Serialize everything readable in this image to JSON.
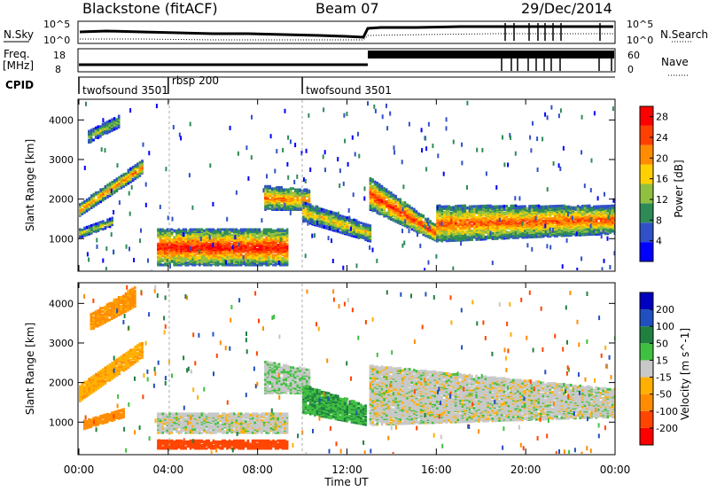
{
  "header": {
    "station": "Blackstone (fitACF)",
    "beam": "Beam 07",
    "date": "29/Dec/2014"
  },
  "status_panels": {
    "nsky_label": "N.Sky",
    "nsky_ticks": [
      "10^5",
      "10^0"
    ],
    "nsearch_label": "N.Search",
    "nsearch_ticks": [
      "10^5",
      "10^0"
    ],
    "freq_label_1": "Freq.",
    "freq_label_2": "[MHz]",
    "freq_ticks": [
      "18",
      "8"
    ],
    "nave_label": "Nave",
    "nave_ticks": [
      "60",
      "0"
    ],
    "cpid_label": "CPID",
    "cpid_segments": [
      {
        "name": "twofsound 3501",
        "start_hour": 0.0,
        "end_hour": 4.0
      },
      {
        "name": "rbsp 200",
        "start_hour": 4.0,
        "end_hour": 10.0
      },
      {
        "name": "twofsound 3501",
        "start_hour": 10.0,
        "end_hour": 24.0
      }
    ]
  },
  "chart_data": [
    {
      "type": "heatmap",
      "title": "",
      "xlabel": "",
      "ylabel": "Slant Range [km]",
      "xlim": [
        0,
        24
      ],
      "ylim": [
        200,
        4500
      ],
      "yticks": [
        1000,
        2000,
        3000,
        4000
      ],
      "colorbar": {
        "label": "Power [dB]",
        "ticks": [
          4,
          8,
          12,
          16,
          20,
          24,
          28
        ],
        "range": [
          0,
          30
        ],
        "colors": [
          "#0000ff",
          "#3050c8",
          "#2e8b57",
          "#90c040",
          "#ffd000",
          "#ff8c00",
          "#ff4000",
          "#ff0000"
        ]
      },
      "echo_bands": [
        {
          "start_hour": 0.0,
          "end_hour": 2.8,
          "range_start": [
            1550,
            1850
          ],
          "range_end": [
            2600,
            2950
          ],
          "peak_db": 22
        },
        {
          "start_hour": 0.0,
          "end_hour": 1.5,
          "range_start": [
            1000,
            1200
          ],
          "range_end": [
            1300,
            1500
          ],
          "peak_db": 16
        },
        {
          "start_hour": 0.4,
          "end_hour": 1.8,
          "range_start": [
            3400,
            3700
          ],
          "range_end": [
            3800,
            4100
          ],
          "peak_db": 14
        },
        {
          "start_hour": 3.5,
          "end_hour": 9.3,
          "range_start": [
            300,
            1200
          ],
          "range_end": [
            300,
            1200
          ],
          "peak_db": 28
        },
        {
          "start_hour": 8.3,
          "end_hour": 10.3,
          "range_start": [
            1700,
            2300
          ],
          "range_end": [
            1700,
            2200
          ],
          "peak_db": 22
        },
        {
          "start_hour": 10.0,
          "end_hour": 13.0,
          "range_start": [
            1400,
            1900
          ],
          "range_end": [
            900,
            1300
          ],
          "peak_db": 18
        },
        {
          "start_hour": 13.0,
          "end_hour": 16.0,
          "range_start": [
            1700,
            2500
          ],
          "range_end": [
            900,
            1300
          ],
          "peak_db": 26
        },
        {
          "start_hour": 16.0,
          "end_hour": 24.0,
          "range_start": [
            900,
            1800
          ],
          "range_end": [
            1100,
            1800
          ],
          "peak_db": 24
        }
      ]
    },
    {
      "type": "heatmap",
      "title": "",
      "xlabel": "Time UT",
      "ylabel": "Slant Range [km]",
      "xlim": [
        0,
        24
      ],
      "ylim": [
        200,
        4500
      ],
      "xticks": [
        "00:00",
        "04:00",
        "08:00",
        "12:00",
        "16:00",
        "20:00",
        "00:00"
      ],
      "yticks": [
        1000,
        2000,
        3000,
        4000
      ],
      "colorbar": {
        "label": "Velocity [m s^-1]",
        "ticks": [
          -200,
          -100,
          -50,
          -15,
          15,
          50,
          100,
          200
        ],
        "colors": [
          "#ff0000",
          "#ff4500",
          "#ff8c00",
          "#ffb000",
          "#c8c8c8",
          "#40c040",
          "#208040",
          "#2050c0",
          "#0000c0"
        ]
      },
      "echo_bands": [
        {
          "start_hour": 0.0,
          "end_hour": 2.8,
          "range_start": [
            1500,
            1900
          ],
          "range_end": [
            2600,
            3000
          ],
          "velocity": -40
        },
        {
          "start_hour": 0.5,
          "end_hour": 2.5,
          "range_start": [
            3300,
            3700
          ],
          "range_end": [
            3900,
            4400
          ],
          "velocity": -60
        },
        {
          "start_hour": 0.2,
          "end_hour": 2.0,
          "range_start": [
            800,
            1000
          ],
          "range_end": [
            1100,
            1300
          ],
          "velocity": -70
        },
        {
          "start_hour": 3.5,
          "end_hour": 9.3,
          "range_start": [
            300,
            500
          ],
          "range_end": [
            300,
            500
          ],
          "velocity": -120
        },
        {
          "start_hour": 3.5,
          "end_hour": 9.3,
          "range_start": [
            700,
            1200
          ],
          "range_end": [
            700,
            1200
          ],
          "velocity": 0
        },
        {
          "start_hour": 8.3,
          "end_hour": 10.3,
          "range_start": [
            1700,
            2500
          ],
          "range_end": [
            1700,
            2300
          ],
          "velocity": 10
        },
        {
          "start_hour": 10.0,
          "end_hour": 12.8,
          "range_start": [
            1200,
            1900
          ],
          "range_end": [
            900,
            1400
          ],
          "velocity": 45
        },
        {
          "start_hour": 13.0,
          "end_hour": 24.0,
          "range_start": [
            900,
            2400
          ],
          "range_end": [
            1100,
            1800
          ],
          "velocity": 0
        }
      ]
    }
  ]
}
